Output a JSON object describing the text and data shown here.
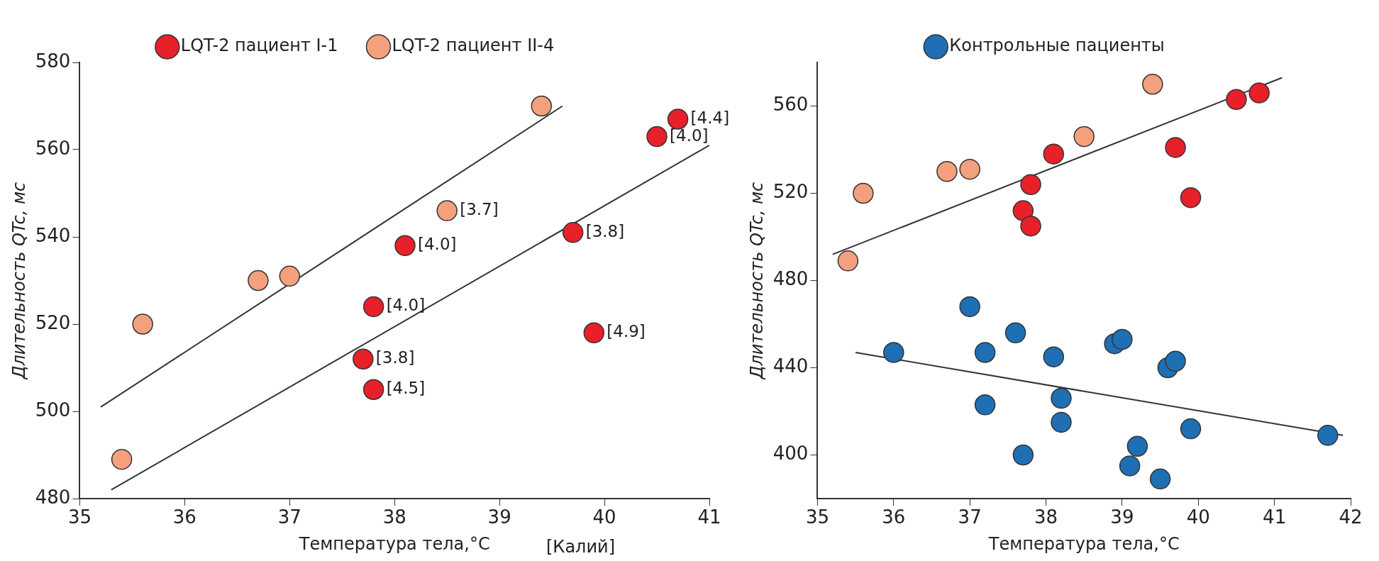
{
  "chart_data": [
    {
      "type": "scatter",
      "xlabel": "Температура тела,°C",
      "ylabel": "Длительность QTc, мс",
      "xlim": [
        35,
        41
      ],
      "xticks": [
        35,
        36,
        37,
        38,
        39,
        40,
        41
      ],
      "ylim": [
        480,
        580
      ],
      "yticks": [
        480,
        500,
        520,
        540,
        560,
        580
      ],
      "grid": false,
      "legend": "top",
      "annotations": [
        {
          "text": "[3.8]",
          "x": 37.7,
          "y": 512
        },
        {
          "text": "[4.5]",
          "x": 37.8,
          "y": 505
        },
        {
          "text": "[4.0]",
          "x": 37.8,
          "y": 524
        },
        {
          "text": "[4.0]",
          "x": 38.1,
          "y": 538
        },
        {
          "text": "[3.8]",
          "x": 39.7,
          "y": 541
        },
        {
          "text": "[4.9]",
          "x": 39.9,
          "y": 518
        },
        {
          "text": "[4.0]",
          "x": 40.5,
          "y": 563
        },
        {
          "text": "[4.4]",
          "x": 40.7,
          "y": 567
        },
        {
          "text": "[3.7]",
          "x": 38.5,
          "y": 546
        },
        "[Калий]"
      ],
      "series": [
        {
          "name": "LQT-2 пациент I-1",
          "color": "#e8202a",
          "marker": "circle",
          "x": [
            37.7,
            37.8,
            37.8,
            38.1,
            39.7,
            39.9,
            40.5,
            40.7
          ],
          "values": [
            512,
            505,
            524,
            538,
            541,
            518,
            563,
            567
          ]
        },
        {
          "name": "LQT-2 пациент II-4",
          "color": "#f4a07e",
          "marker": "circle",
          "x": [
            35.4,
            35.6,
            36.7,
            37.0,
            38.5,
            39.4
          ],
          "values": [
            489,
            520,
            530,
            531,
            546,
            570
          ]
        },
        {
          "type": "line",
          "color": "#333333",
          "marker": "none",
          "x": [
            35.2,
            39.6
          ],
          "values": [
            501,
            570
          ]
        },
        {
          "type": "line",
          "color": "#333333",
          "marker": "none",
          "x": [
            35.3,
            41.0
          ],
          "values": [
            482,
            561
          ]
        }
      ]
    },
    {
      "type": "scatter",
      "xlabel": "Температура тела,°C",
      "ylabel": "Длительность QTc, мс",
      "xlim": [
        35,
        42
      ],
      "xticks": [
        35,
        36,
        37,
        38,
        39,
        40,
        41,
        42
      ],
      "ylim": [
        380,
        580
      ],
      "yticks": [
        400,
        440,
        480,
        520,
        560
      ],
      "grid": false,
      "legend": "top",
      "series": [
        {
          "color": "#e8202a",
          "marker": "circle",
          "x": [
            37.7,
            37.8,
            37.8,
            38.1,
            39.7,
            39.9,
            40.5,
            40.8
          ],
          "values": [
            512,
            505,
            524,
            538,
            541,
            518,
            563,
            566
          ]
        },
        {
          "color": "#f4a07e",
          "marker": "circle",
          "x": [
            35.4,
            35.6,
            36.7,
            37.0,
            38.5,
            39.4
          ],
          "values": [
            489,
            520,
            530,
            531,
            546,
            570
          ]
        },
        {
          "name": "Контрольные пациенты",
          "color": "#1f6fb5",
          "marker": "circle",
          "x": [
            36.0,
            37.0,
            37.6,
            37.2,
            37.2,
            38.1,
            38.2,
            38.2,
            37.7,
            38.9,
            39.0,
            39.6,
            39.7,
            39.9,
            39.2,
            39.1,
            39.5,
            41.7
          ],
          "values": [
            447,
            468,
            456,
            447,
            423,
            445,
            426,
            415,
            400,
            451,
            453,
            440,
            443,
            412,
            404,
            395,
            389,
            409
          ]
        },
        {
          "type": "line",
          "color": "#333333",
          "marker": "none",
          "x": [
            35.2,
            41.1
          ],
          "values": [
            492,
            573
          ]
        },
        {
          "type": "line",
          "color": "#333333",
          "marker": "none",
          "x": [
            35.5,
            41.9
          ],
          "values": [
            447,
            409
          ]
        }
      ]
    }
  ]
}
